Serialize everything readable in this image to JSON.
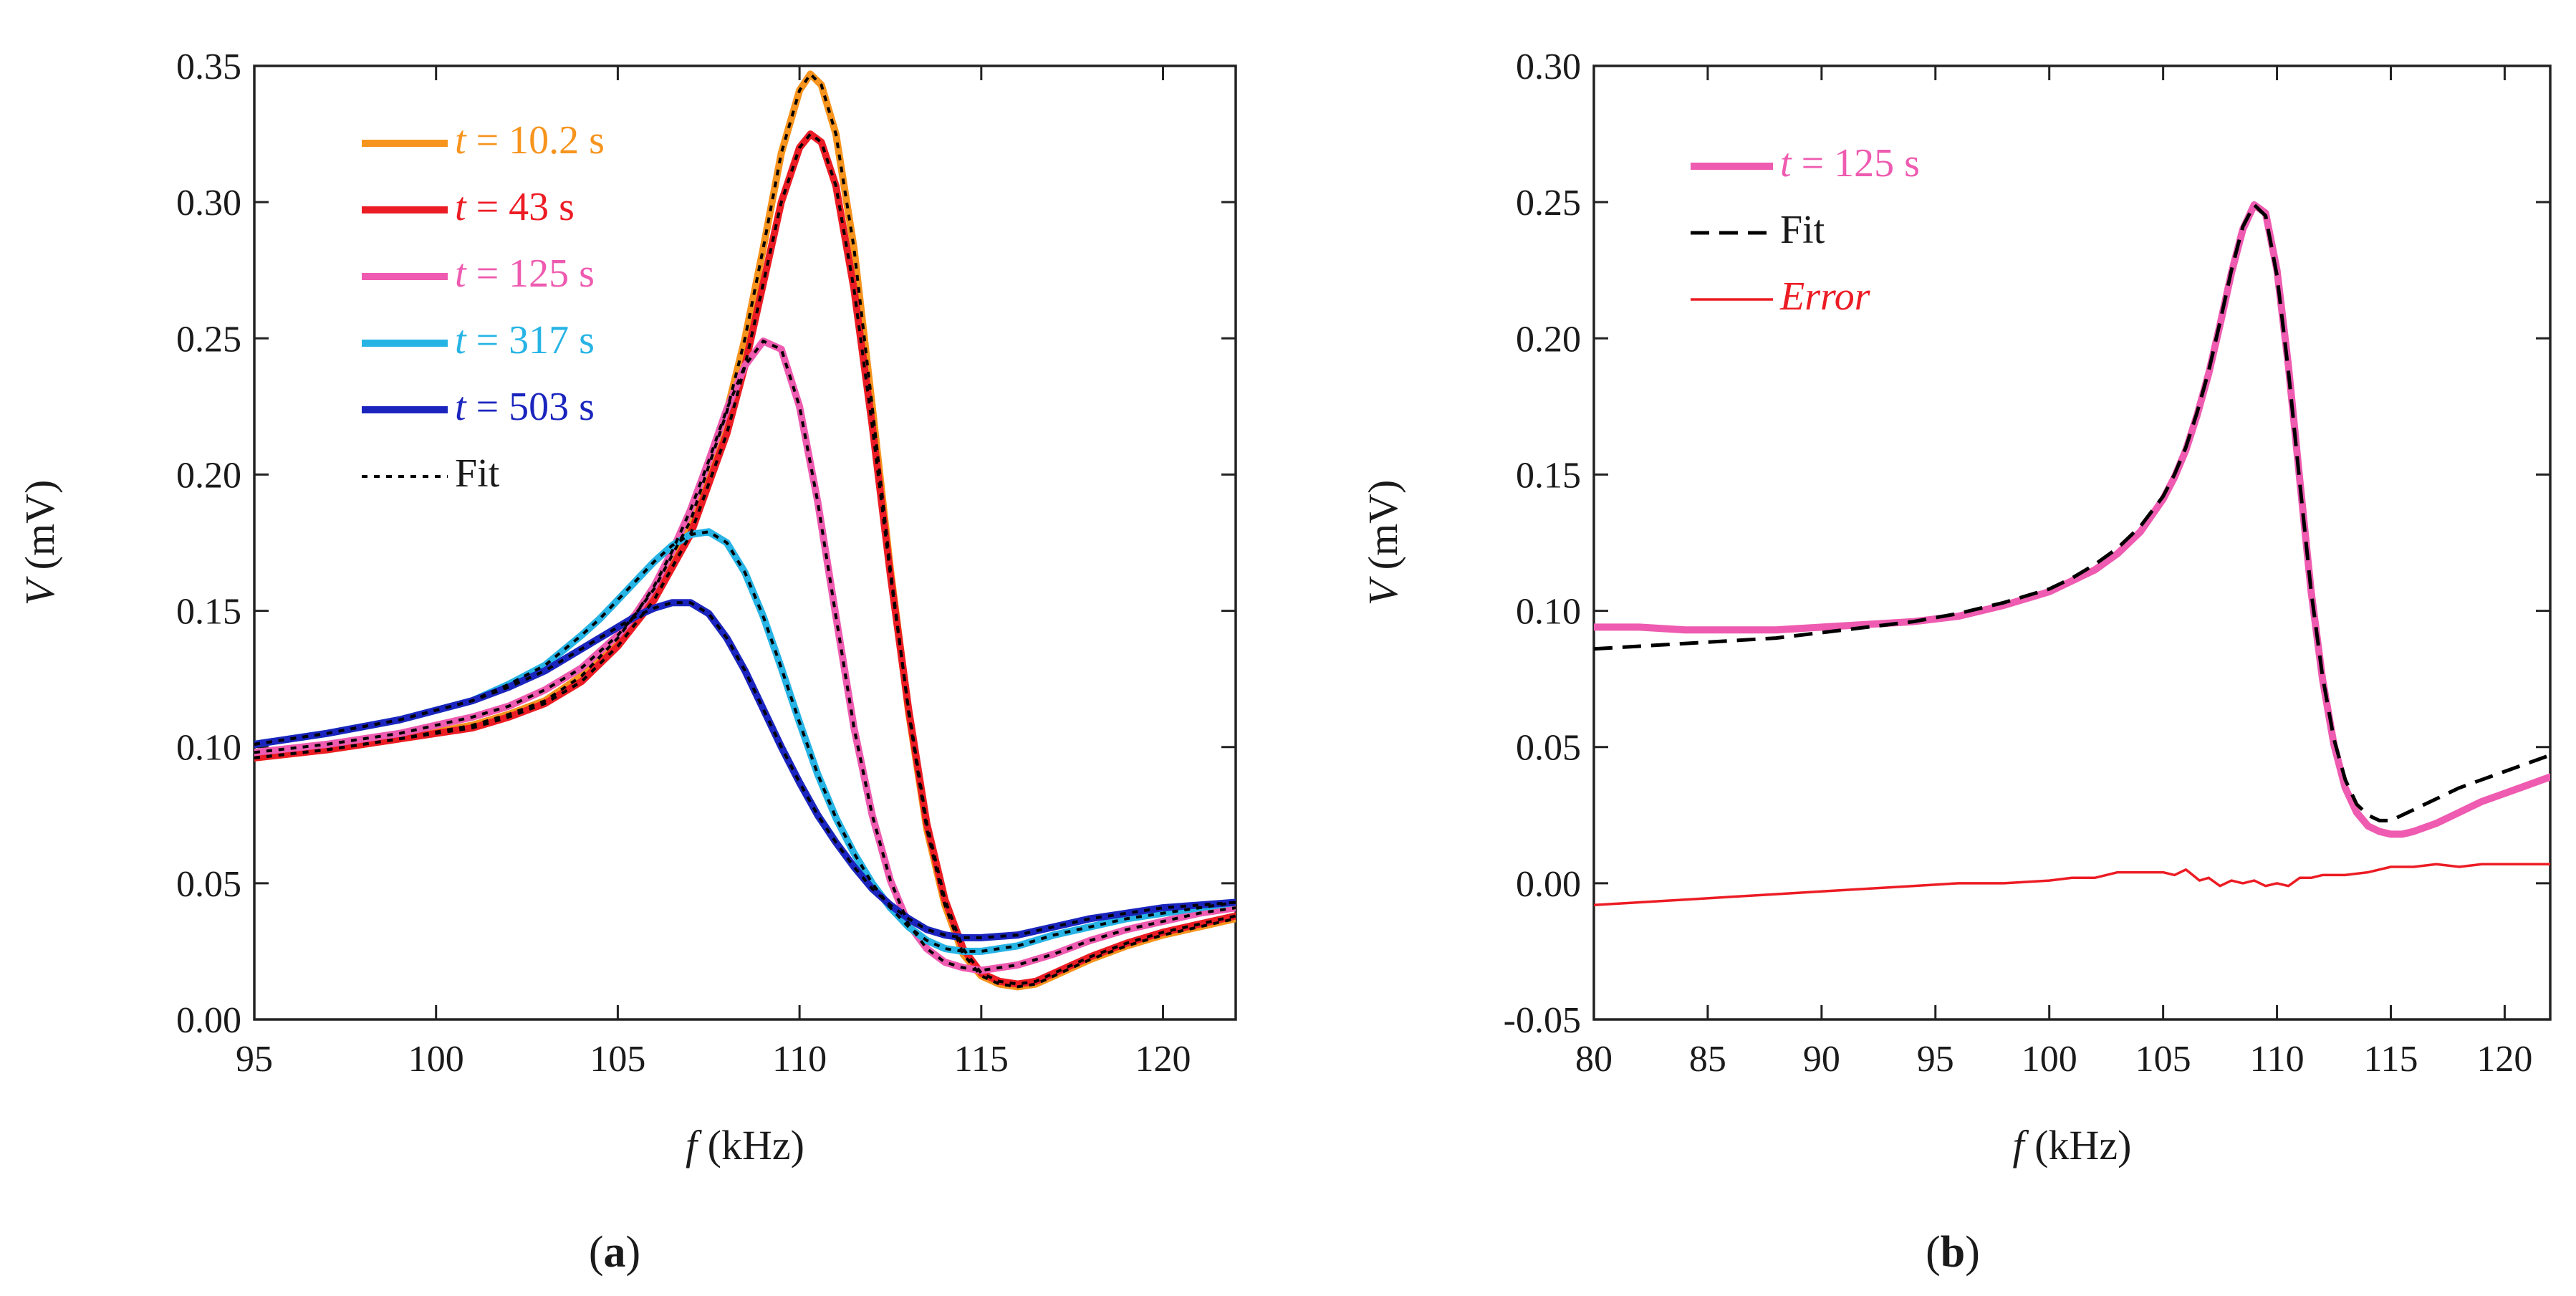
{
  "chart_data": [
    {
      "panel": "a",
      "type": "line",
      "panel_label": "(a)",
      "xlabel_sym": "f",
      "xlabel_unit": " (kHz)",
      "ylabel_sym": "V",
      "ylabel_unit": " (mV)",
      "xlim": [
        95,
        122
      ],
      "ylim": [
        0.0,
        0.35
      ],
      "xticks": [
        95,
        100,
        105,
        110,
        115,
        120
      ],
      "yticks": [
        0.0,
        0.05,
        0.1,
        0.15,
        0.2,
        0.25,
        0.3,
        0.35
      ],
      "ytick_decimals": 2,
      "legend": "top-left",
      "series": [
        {
          "name": "t = 10.2 s",
          "legend_prefix": "t",
          "legend_text": " = 10.2 s",
          "color": "#F7941D",
          "x": [
            95,
            97,
            99,
            101,
            102,
            103,
            104,
            105,
            106,
            107,
            108,
            108.5,
            109,
            109.5,
            110,
            110.3,
            110.6,
            111,
            111.5,
            112,
            112.5,
            113,
            113.5,
            114,
            114.5,
            115,
            115.5,
            116,
            116.5,
            117,
            117.5,
            118,
            119,
            120,
            121,
            122
          ],
          "y": [
            0.096,
            0.099,
            0.103,
            0.108,
            0.112,
            0.117,
            0.126,
            0.14,
            0.158,
            0.183,
            0.223,
            0.25,
            0.283,
            0.318,
            0.341,
            0.347,
            0.343,
            0.325,
            0.283,
            0.225,
            0.165,
            0.113,
            0.07,
            0.042,
            0.024,
            0.016,
            0.013,
            0.012,
            0.013,
            0.016,
            0.019,
            0.022,
            0.027,
            0.031,
            0.034,
            0.037
          ]
        },
        {
          "name": "t = 43 s",
          "legend_prefix": "t",
          "legend_text": " = 43 s",
          "color": "#EC1C24",
          "x": [
            95,
            97,
            99,
            101,
            102,
            103,
            104,
            105,
            106,
            107,
            108,
            108.5,
            109,
            109.5,
            110,
            110.3,
            110.6,
            111,
            111.5,
            112,
            112.5,
            113,
            113.5,
            114,
            114.5,
            115,
            115.5,
            116,
            116.5,
            117,
            117.5,
            118,
            119,
            120,
            121,
            122
          ],
          "y": [
            0.096,
            0.099,
            0.103,
            0.107,
            0.111,
            0.116,
            0.124,
            0.137,
            0.154,
            0.178,
            0.215,
            0.24,
            0.27,
            0.3,
            0.32,
            0.325,
            0.322,
            0.306,
            0.268,
            0.218,
            0.163,
            0.114,
            0.072,
            0.044,
            0.026,
            0.017,
            0.014,
            0.013,
            0.014,
            0.017,
            0.02,
            0.023,
            0.028,
            0.032,
            0.035,
            0.038
          ]
        },
        {
          "name": "t = 125 s",
          "legend_prefix": "t",
          "legend_text": " = 125 s",
          "color": "#EE5BB0",
          "x": [
            95,
            97,
            99,
            101,
            102,
            103,
            104,
            105,
            105.5,
            106,
            106.5,
            107,
            107.5,
            108,
            108.5,
            109,
            109.5,
            110,
            110.5,
            111,
            111.5,
            112,
            112.5,
            113,
            113.5,
            114,
            114.5,
            115,
            115.5,
            116,
            117,
            118,
            119,
            120,
            121,
            122
          ],
          "y": [
            0.098,
            0.101,
            0.105,
            0.111,
            0.115,
            0.121,
            0.129,
            0.141,
            0.149,
            0.159,
            0.172,
            0.187,
            0.205,
            0.224,
            0.24,
            0.249,
            0.246,
            0.225,
            0.19,
            0.148,
            0.107,
            0.075,
            0.051,
            0.035,
            0.026,
            0.021,
            0.019,
            0.018,
            0.019,
            0.02,
            0.024,
            0.029,
            0.033,
            0.036,
            0.039,
            0.041
          ]
        },
        {
          "name": "t = 317 s",
          "legend_prefix": "t",
          "legend_text": " = 317 s",
          "color": "#27B4E5",
          "x": [
            95,
            97,
            99,
            101,
            102,
            103,
            104,
            104.5,
            105,
            105.5,
            106,
            106.5,
            107,
            107.5,
            108,
            108.5,
            109,
            109.5,
            110,
            110.5,
            111,
            111.5,
            112,
            112.5,
            113,
            113.5,
            114,
            114.5,
            115,
            116,
            117,
            118,
            119,
            120,
            121,
            122
          ],
          "y": [
            0.101,
            0.105,
            0.11,
            0.117,
            0.123,
            0.13,
            0.141,
            0.147,
            0.154,
            0.161,
            0.168,
            0.174,
            0.178,
            0.179,
            0.175,
            0.164,
            0.148,
            0.129,
            0.109,
            0.09,
            0.074,
            0.061,
            0.05,
            0.041,
            0.034,
            0.029,
            0.026,
            0.025,
            0.025,
            0.027,
            0.031,
            0.034,
            0.037,
            0.039,
            0.041,
            0.043
          ]
        },
        {
          "name": "t = 503 s",
          "legend_prefix": "t",
          "legend_text": " = 503 s",
          "color": "#1B25BE",
          "x": [
            95,
            97,
            99,
            101,
            102,
            103,
            104,
            104.5,
            105,
            105.5,
            106,
            106.5,
            107,
            107.5,
            108,
            108.5,
            109,
            109.5,
            110,
            110.5,
            111,
            111.5,
            112,
            112.5,
            113,
            113.5,
            114,
            114.5,
            115,
            116,
            117,
            118,
            119,
            120,
            121,
            122
          ],
          "y": [
            0.101,
            0.105,
            0.11,
            0.117,
            0.122,
            0.128,
            0.136,
            0.14,
            0.144,
            0.148,
            0.151,
            0.153,
            0.153,
            0.149,
            0.14,
            0.128,
            0.114,
            0.1,
            0.087,
            0.075,
            0.065,
            0.056,
            0.048,
            0.042,
            0.037,
            0.033,
            0.031,
            0.03,
            0.03,
            0.031,
            0.034,
            0.037,
            0.039,
            0.041,
            0.042,
            0.043
          ]
        }
      ],
      "fit": {
        "name": "Fit",
        "legend_text": "Fit",
        "color": "#000000",
        "style": "dotted"
      }
    },
    {
      "panel": "b",
      "type": "line",
      "panel_label": "(b)",
      "xlabel_sym": "f",
      "xlabel_unit": " (kHz)",
      "ylabel_sym": "V",
      "ylabel_unit": " (mV)",
      "xlim": [
        80,
        122
      ],
      "ylim": [
        -0.05,
        0.3
      ],
      "xticks": [
        80,
        85,
        90,
        95,
        100,
        105,
        110,
        115,
        120
      ],
      "yticks": [
        -0.05,
        0.0,
        0.05,
        0.1,
        0.15,
        0.2,
        0.25,
        0.3
      ],
      "ytick_decimals": 2,
      "legend": "top-left",
      "series": [
        {
          "name": "t = 125 s",
          "legend_prefix": "t",
          "legend_text": " = 125 s",
          "color": "#EE5BB0",
          "style": "solid-thick",
          "x": [
            80,
            82,
            84,
            86,
            88,
            90,
            92,
            94,
            96,
            98,
            100,
            101,
            102,
            103,
            104,
            105,
            105.5,
            106,
            106.5,
            107,
            107.5,
            108,
            108.5,
            109,
            109.5,
            110,
            110.5,
            111,
            111.5,
            112,
            112.5,
            113,
            113.5,
            114,
            114.5,
            115,
            115.5,
            116,
            117,
            118,
            119,
            120,
            121,
            122
          ],
          "y": [
            0.094,
            0.094,
            0.093,
            0.093,
            0.093,
            0.094,
            0.095,
            0.096,
            0.098,
            0.102,
            0.107,
            0.111,
            0.115,
            0.121,
            0.129,
            0.141,
            0.149,
            0.159,
            0.172,
            0.187,
            0.205,
            0.224,
            0.24,
            0.249,
            0.246,
            0.225,
            0.19,
            0.148,
            0.107,
            0.075,
            0.051,
            0.035,
            0.026,
            0.021,
            0.019,
            0.018,
            0.018,
            0.019,
            0.022,
            0.026,
            0.03,
            0.033,
            0.036,
            0.039
          ]
        },
        {
          "name": "Fit",
          "legend_prefix": "",
          "legend_text": "Fit",
          "color": "#000000",
          "style": "dashed",
          "x": [
            80,
            82,
            84,
            86,
            88,
            90,
            92,
            94,
            96,
            98,
            100,
            101,
            102,
            103,
            104,
            105,
            105.5,
            106,
            106.5,
            107,
            107.5,
            108,
            108.5,
            109,
            109.5,
            110,
            110.5,
            111,
            111.5,
            112,
            112.5,
            113,
            113.5,
            114,
            114.5,
            115,
            115.5,
            116,
            117,
            118,
            119,
            120,
            121,
            122
          ],
          "y": [
            0.086,
            0.087,
            0.088,
            0.089,
            0.09,
            0.092,
            0.094,
            0.096,
            0.099,
            0.103,
            0.108,
            0.112,
            0.117,
            0.123,
            0.131,
            0.142,
            0.15,
            0.16,
            0.173,
            0.188,
            0.206,
            0.225,
            0.241,
            0.249,
            0.245,
            0.223,
            0.188,
            0.147,
            0.107,
            0.076,
            0.053,
            0.038,
            0.029,
            0.025,
            0.023,
            0.023,
            0.025,
            0.027,
            0.031,
            0.035,
            0.038,
            0.041,
            0.044,
            0.047
          ]
        },
        {
          "name": "Error",
          "legend_prefix": "",
          "legend_text": "Error",
          "color": "#EC1C24",
          "style": "solid-thin",
          "x": [
            80,
            82,
            84,
            86,
            88,
            90,
            92,
            94,
            96,
            98,
            100,
            101,
            102,
            103,
            104,
            105,
            105.5,
            106,
            106.3,
            106.6,
            107,
            107.5,
            108,
            108.5,
            109,
            109.5,
            110,
            110.5,
            111,
            111.5,
            112,
            113,
            114,
            115,
            116,
            117,
            118,
            119,
            120,
            121,
            122
          ],
          "y": [
            -0.008,
            -0.007,
            -0.006,
            -0.005,
            -0.004,
            -0.003,
            -0.002,
            -0.001,
            0.0,
            0.0,
            0.001,
            0.002,
            0.002,
            0.004,
            0.004,
            0.004,
            0.003,
            0.005,
            0.003,
            0.001,
            0.002,
            -0.001,
            0.001,
            0.0,
            0.001,
            -0.001,
            0.0,
            -0.001,
            0.002,
            0.002,
            0.003,
            0.003,
            0.004,
            0.006,
            0.006,
            0.007,
            0.006,
            0.007,
            0.007,
            0.007,
            0.007
          ]
        }
      ]
    }
  ]
}
